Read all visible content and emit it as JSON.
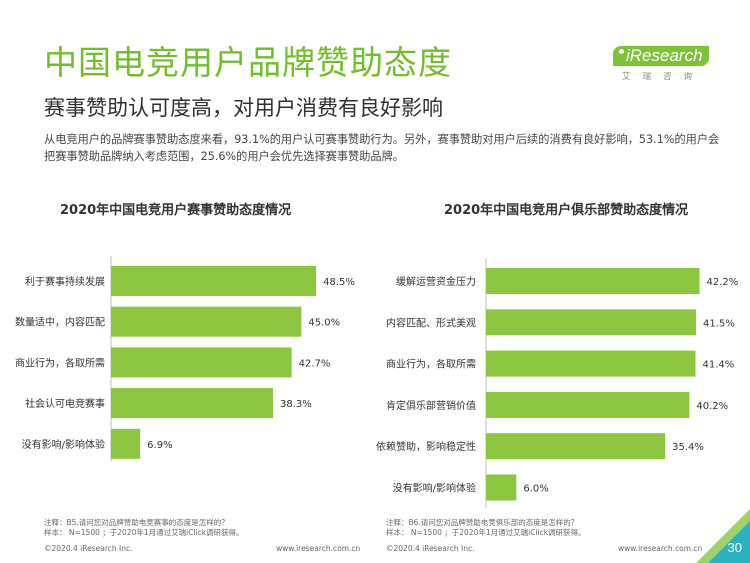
{
  "header": {
    "title": "中国电竞用户品牌赞助态度",
    "subtitle": "赛事赞助认可度高，对用户消费有良好影响",
    "description": "从电竞用户的品牌赛事赞助态度来看，93.1%的用户认可赛事赞助行为。另外，赛事赞助对用户后续的消费有良好影响，53.1%的用户会把赛事赞助品牌纳入考虑范围，25.6%的用户会优先选择赛事赞助品牌。"
  },
  "logo": {
    "brand": "iResearch",
    "sub": "艾瑞咨询"
  },
  "colors": {
    "accent": "#6fbe2a",
    "bar": "#8cc63f",
    "logo": "#7cc33a"
  },
  "chart_data": [
    {
      "type": "bar",
      "orientation": "horizontal",
      "title": "2020年中国电竞用户赛事赞助态度情况",
      "categories": [
        "利于赛事持续发展",
        "数量适中，内容匹配",
        "商业行为，各取所需",
        "社会认可电竞赛事",
        "没有影响/影响体验"
      ],
      "values": [
        48.5,
        45.0,
        42.7,
        38.3,
        6.9
      ],
      "value_labels": [
        "48.5%",
        "45.0%",
        "42.7%",
        "38.3%",
        "6.9%"
      ],
      "unit": "%",
      "xlim": [
        0,
        50
      ]
    },
    {
      "type": "bar",
      "orientation": "horizontal",
      "title": "2020年中国电竞用户俱乐部赞助态度情况",
      "categories": [
        "缓解运营资金压力",
        "内容匹配、形式美观",
        "商业行为，各取所需",
        "肯定俱乐部营销价值",
        "依赖赞助，影响稳定性",
        "没有影响/影响体验"
      ],
      "values": [
        42.2,
        41.5,
        41.4,
        40.2,
        35.4,
        6.0
      ],
      "value_labels": [
        "42.2%",
        "41.5%",
        "41.4%",
        "40.2%",
        "35.4%",
        "6.0%"
      ],
      "unit": "%",
      "xlim": [
        0,
        50
      ]
    }
  ],
  "notes": {
    "left_line1": "注释：B5.请问您对品牌赞助电竞赛事的态度是怎样的？",
    "left_line2": "样本： N=1500 ；于2020年1月通过艾瑞iClick调研获得。",
    "right_line1": "注释：B6.请问您对品牌赞助电竞俱乐部的态度是怎样的？",
    "right_line2": "样本： N=1500 ；于2020年1月通过艾瑞iClick调研获得。"
  },
  "footer": {
    "copyright_left": "©2020.4 iResearch Inc.",
    "url_left": "www.iresearch.com.cn",
    "copyright_right": "©2020.4 iResearch Inc.",
    "url_right": "www.iresearch.com.cn",
    "page_number": "30"
  }
}
